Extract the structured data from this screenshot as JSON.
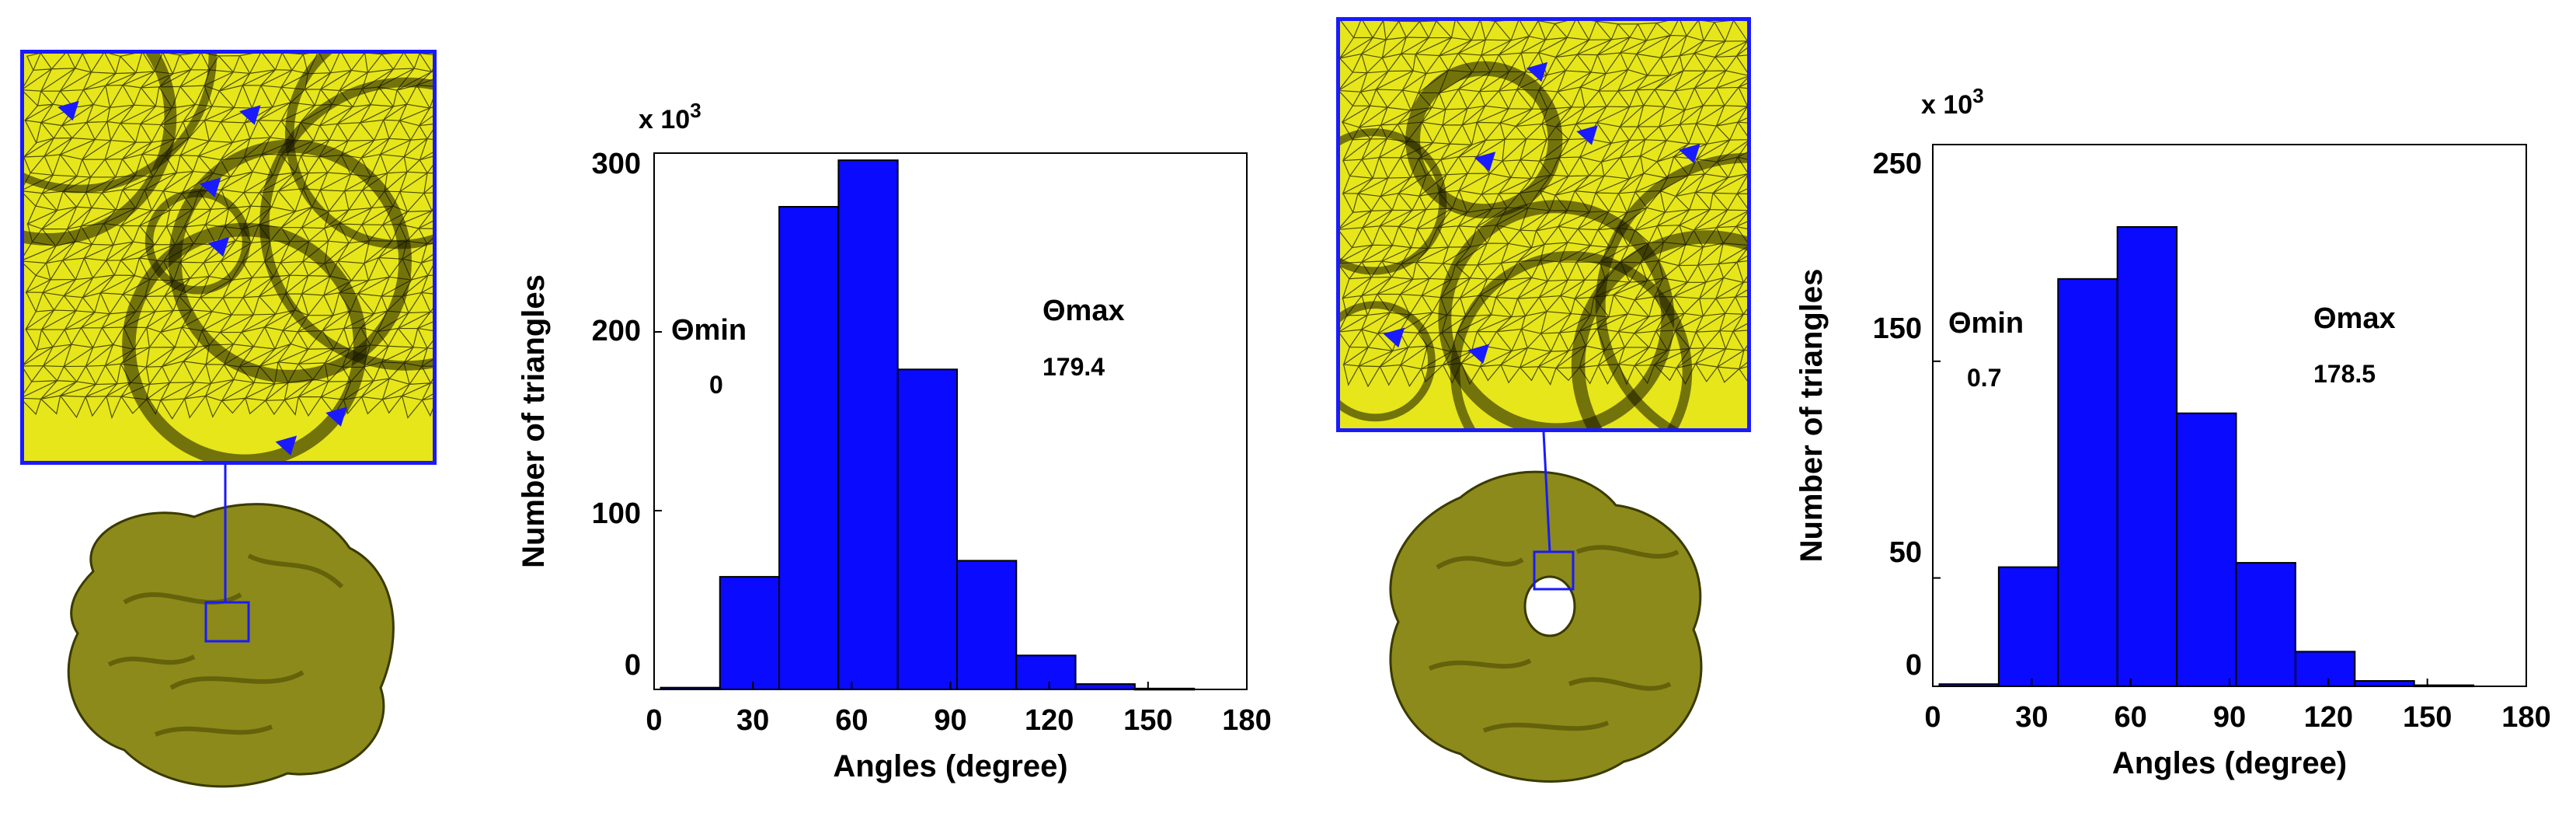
{
  "colors": {
    "bar": "#0a0aff",
    "mesh": "#e6e61a",
    "mesh_line": "#1a1a00",
    "frame": "#1a1aff",
    "protein": "#8c8a1a"
  },
  "panels": [
    {
      "mesh_image": "mesh-closeup-icon",
      "protein_image": "protein-surface-icon",
      "theta_min_label": "Θmin",
      "theta_min_value": "0",
      "theta_max_label": "Θmax",
      "theta_max_value": "179.4",
      "multiplier": "x 10",
      "multiplier_exp": "3"
    },
    {
      "mesh_image": "mesh-closeup-icon",
      "protein_image": "protein-ring-surface-icon",
      "theta_min_label": "Θmin",
      "theta_min_value": "0.7",
      "theta_max_label": "Θmax",
      "theta_max_value": "178.5",
      "multiplier": "x 10",
      "multiplier_exp": "3"
    }
  ],
  "chart_data": [
    {
      "type": "bar",
      "xlabel": "Angles (degree)",
      "ylabel": "Number of triangles",
      "xlim": [
        0,
        180
      ],
      "ylim": [
        0,
        300
      ],
      "xticks": [
        "0",
        "30",
        "60",
        "90",
        "120",
        "150",
        "180"
      ],
      "yticks": [
        "0",
        "100",
        "200",
        "300"
      ],
      "y_multiplier": "x 10^3",
      "bins": [
        {
          "x0": 2,
          "x1": 20,
          "value": 1.0
        },
        {
          "x0": 20,
          "x1": 38,
          "value": 63
        },
        {
          "x0": 38,
          "x1": 56,
          "value": 270
        },
        {
          "x0": 56,
          "x1": 74,
          "value": 296
        },
        {
          "x0": 74,
          "x1": 92,
          "value": 179
        },
        {
          "x0": 92,
          "x1": 110,
          "value": 72
        },
        {
          "x0": 110,
          "x1": 128,
          "value": 19
        },
        {
          "x0": 128,
          "x1": 146,
          "value": 3
        },
        {
          "x0": 146,
          "x1": 164,
          "value": 0.5
        }
      ]
    },
    {
      "type": "bar",
      "xlabel": "Angles (degree)",
      "ylabel": "Number of triangles",
      "xlim": [
        0,
        180
      ],
      "ylim": [
        0,
        250
      ],
      "xticks": [
        "0",
        "30",
        "60",
        "90",
        "120",
        "150",
        "180"
      ],
      "yticks": [
        "0",
        "50",
        "150",
        "250"
      ],
      "y_multiplier": "x 10^3",
      "bins": [
        {
          "x0": 2,
          "x1": 20,
          "value": 1.0
        },
        {
          "x0": 20,
          "x1": 38,
          "value": 55
        },
        {
          "x0": 38,
          "x1": 56,
          "value": 188
        },
        {
          "x0": 56,
          "x1": 74,
          "value": 212
        },
        {
          "x0": 74,
          "x1": 92,
          "value": 126
        },
        {
          "x0": 92,
          "x1": 110,
          "value": 57
        },
        {
          "x0": 110,
          "x1": 128,
          "value": 16
        },
        {
          "x0": 128,
          "x1": 146,
          "value": 2.5
        },
        {
          "x0": 146,
          "x1": 164,
          "value": 0.5
        }
      ]
    }
  ]
}
